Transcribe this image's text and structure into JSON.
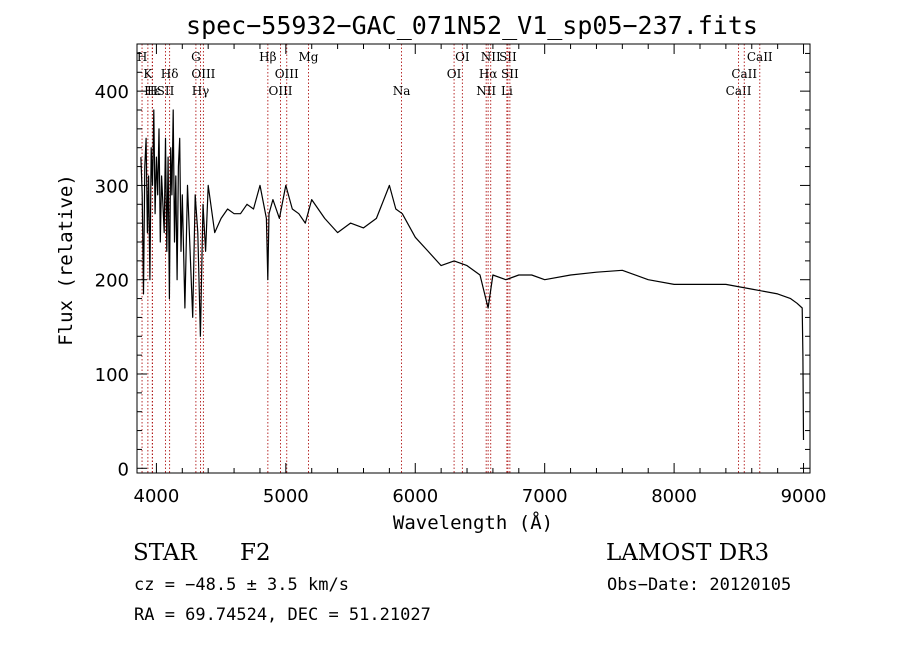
{
  "chart_data": {
    "type": "line",
    "title": "spec−55932−GAC_071N52_V1_sp05−237.fits",
    "xlabel": "Wavelength (Å)",
    "ylabel": "Flux (relative)",
    "xlim": [
      3850,
      9050
    ],
    "ylim": [
      -5,
      450
    ],
    "xticks": [
      4000,
      5000,
      6000,
      7000,
      8000,
      9000
    ],
    "xtick_labels": [
      "4000",
      "5000",
      "6000",
      "7000",
      "8000",
      "9000"
    ],
    "yticks": [
      0,
      100,
      200,
      300,
      400
    ],
    "ytick_labels": [
      "0",
      "100",
      "200",
      "300",
      "400"
    ],
    "grid": false,
    "series": [
      {
        "x": [
          3880,
          3890,
          3900,
          3910,
          3920,
          3930,
          3940,
          3950,
          3960,
          3970,
          3980,
          3990,
          4000,
          4010,
          4020,
          4030,
          4040,
          4050,
          4060,
          4070,
          4080,
          4090,
          4100,
          4110,
          4120,
          4130,
          4140,
          4150,
          4160,
          4170,
          4180,
          4190,
          4200,
          4220,
          4240,
          4260,
          4280,
          4300,
          4320,
          4340,
          4360,
          4380,
          4400,
          4450,
          4500,
          4550,
          4600,
          4650,
          4700,
          4750,
          4800,
          4850,
          4861,
          4870,
          4900,
          4950,
          5000,
          5050,
          5100,
          5150,
          5200,
          5300,
          5400,
          5500,
          5600,
          5700,
          5800,
          5850,
          5900,
          6000,
          6100,
          6200,
          6300,
          6400,
          6500,
          6563,
          6600,
          6700,
          6800,
          6900,
          7000,
          7200,
          7400,
          7600,
          7800,
          8000,
          8200,
          8400,
          8600,
          8800,
          8900,
          8950,
          8990,
          8995,
          9000
        ],
        "y": [
          330,
          290,
          185,
          320,
          350,
          250,
          310,
          200,
          340,
          300,
          380,
          270,
          330,
          290,
          360,
          240,
          310,
          280,
          250,
          350,
          230,
          330,
          180,
          340,
          290,
          380,
          240,
          310,
          200,
          320,
          350,
          230,
          290,
          170,
          300,
          230,
          160,
          290,
          250,
          140,
          280,
          230,
          300,
          250,
          265,
          275,
          270,
          270,
          280,
          275,
          300,
          265,
          200,
          270,
          285,
          265,
          300,
          275,
          270,
          260,
          285,
          265,
          250,
          260,
          255,
          265,
          300,
          275,
          270,
          245,
          230,
          215,
          220,
          215,
          205,
          170,
          205,
          200,
          205,
          205,
          200,
          205,
          208,
          210,
          200,
          195,
          195,
          195,
          190,
          185,
          180,
          175,
          170,
          120,
          30
        ]
      }
    ],
    "lines": [
      {
        "label": "H",
        "x": 3889,
        "row": 0
      },
      {
        "label": "K",
        "x": 3934,
        "row": 1
      },
      {
        "label": "H",
        "x": 3968,
        "row": 2
      },
      {
        "label": "Hε",
        "x": 3970,
        "row": 2
      },
      {
        "label": "SII",
        "x": 4070,
        "row": 2
      },
      {
        "label": "Hδ",
        "x": 4102,
        "row": 1
      },
      {
        "label": "G",
        "x": 4305,
        "row": 0
      },
      {
        "label": "Hγ",
        "x": 4341,
        "row": 2
      },
      {
        "label": "OIII",
        "x": 4363,
        "row": 1
      },
      {
        "label": "Hβ",
        "x": 4861,
        "row": 0
      },
      {
        "label": "OIII",
        "x": 4959,
        "row": 2
      },
      {
        "label": "OIII",
        "x": 5007,
        "row": 1
      },
      {
        "label": "Mg",
        "x": 5175,
        "row": 0
      },
      {
        "label": "Na",
        "x": 5894,
        "row": 2
      },
      {
        "label": "OI",
        "x": 6300,
        "row": 1
      },
      {
        "label": "OI",
        "x": 6364,
        "row": 0
      },
      {
        "label": "NII",
        "x": 6548,
        "row": 2
      },
      {
        "label": "Hα",
        "x": 6563,
        "row": 1
      },
      {
        "label": "NII",
        "x": 6583,
        "row": 0
      },
      {
        "label": "Li",
        "x": 6708,
        "row": 2
      },
      {
        "label": "SII",
        "x": 6716,
        "row": 0
      },
      {
        "label": "SII",
        "x": 6731,
        "row": 1
      },
      {
        "label": "CaII",
        "x": 8498,
        "row": 2
      },
      {
        "label": "CaII",
        "x": 8542,
        "row": 1
      },
      {
        "label": "CaII",
        "x": 8662,
        "row": 0
      }
    ]
  },
  "info": {
    "class": "STAR",
    "subclass": "F2",
    "survey": "LAMOST DR3",
    "cz": "cz = −48.5 ± 3.5 km/s",
    "obsdate": "Obs−Date: 20120105",
    "radec": "RA =  69.74524, DEC =  51.21027"
  },
  "colors": {
    "line_marker": "#b01818",
    "spectrum": "#000000"
  }
}
